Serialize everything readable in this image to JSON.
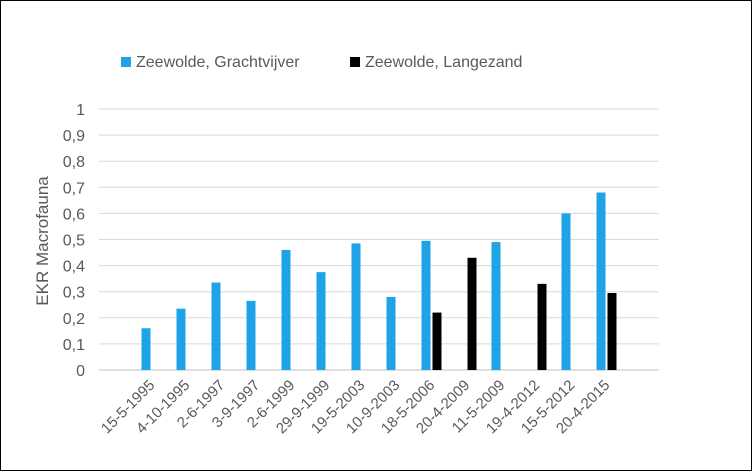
{
  "chart_data": {
    "type": "bar",
    "title": "",
    "xlabel": "",
    "ylabel": "EKR Macrofauna",
    "ylim": [
      0,
      1
    ],
    "yticks": [
      "0",
      "0,1",
      "0,2",
      "0,3",
      "0,4",
      "0,5",
      "0,6",
      "0,7",
      "0,8",
      "0,9",
      "1"
    ],
    "grid": true,
    "legend_position": "top-left",
    "categories": [
      "15-5-1995",
      "4-10-1995",
      "2-6-1997",
      "3-9-1997",
      "2-6-1999",
      "29-9-1999",
      "19-5-2003",
      "10-9-2003",
      "18-5-2006",
      "20-4-2009",
      "11-5-2009",
      "19-4-2012",
      "15-5-2012",
      "20-4-2015"
    ],
    "series": [
      {
        "name": "Zeewolde, Grachtvijver",
        "color": "#1ea3e6",
        "values": [
          0.16,
          0.235,
          0.335,
          0.265,
          0.46,
          0.375,
          0.485,
          0.28,
          0.495,
          null,
          0.49,
          null,
          0.6,
          0.68
        ]
      },
      {
        "name": "Zeewolde, Langezand",
        "color": "#000000",
        "values": [
          null,
          null,
          null,
          null,
          null,
          null,
          null,
          null,
          0.22,
          0.43,
          null,
          0.33,
          null,
          0.295
        ]
      }
    ]
  }
}
